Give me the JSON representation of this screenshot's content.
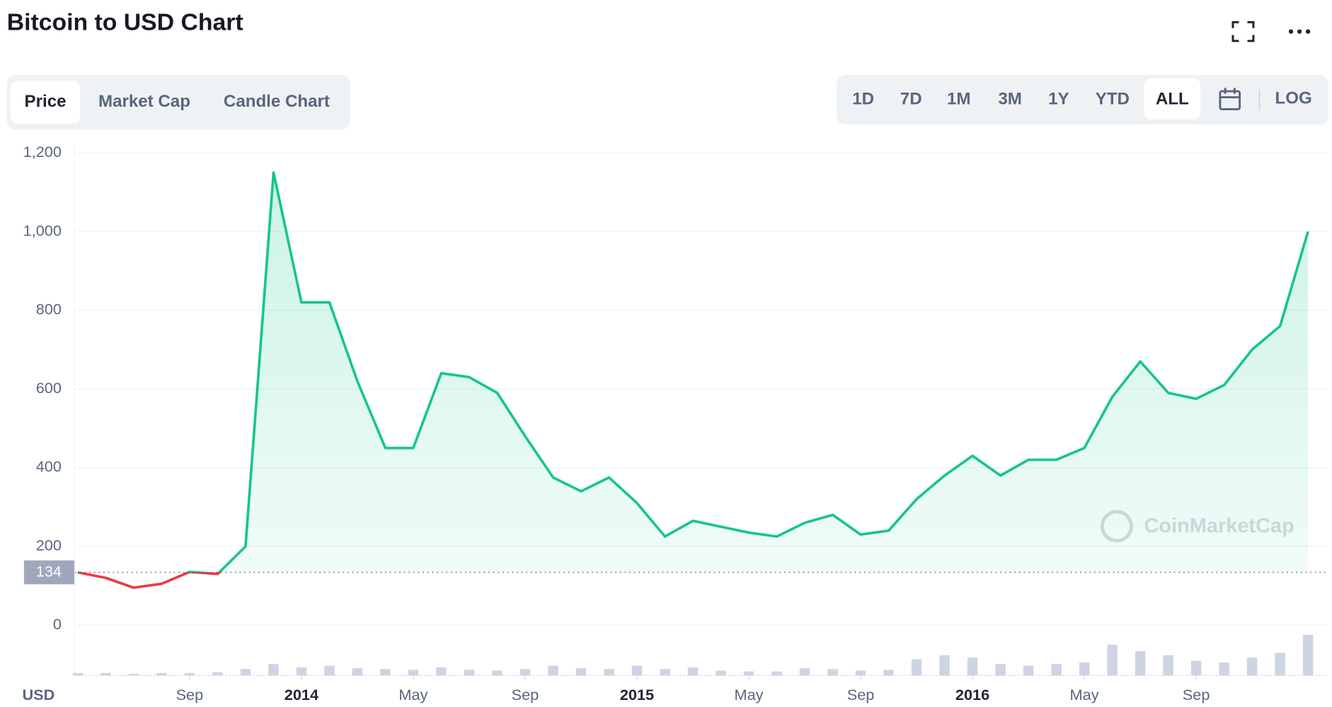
{
  "header": {
    "title": "Bitcoin to USD Chart"
  },
  "tabs": [
    "Price",
    "Market Cap",
    "Candle Chart"
  ],
  "active_tab": 0,
  "ranges": [
    "1D",
    "7D",
    "1M",
    "3M",
    "1Y",
    "YTD",
    "ALL"
  ],
  "active_range": 6,
  "log_button": "LOG",
  "watermark": "CoinMarketCap",
  "chart_data": {
    "type": "line",
    "x": [
      "2013-05",
      "2013-06",
      "2013-07",
      "2013-08",
      "2013-09",
      "2013-10",
      "2013-11",
      "2013-12",
      "2014-01",
      "2014-02",
      "2014-03",
      "2014-04",
      "2014-05",
      "2014-06",
      "2014-07",
      "2014-08",
      "2014-09",
      "2014-10",
      "2014-11",
      "2014-12",
      "2015-01",
      "2015-02",
      "2015-03",
      "2015-04",
      "2015-05",
      "2015-06",
      "2015-07",
      "2015-08",
      "2015-09",
      "2015-10",
      "2015-11",
      "2015-12",
      "2016-01",
      "2016-02",
      "2016-03",
      "2016-04",
      "2016-05",
      "2016-06",
      "2016-07",
      "2016-08",
      "2016-09",
      "2016-10",
      "2016-11",
      "2016-12",
      "2017-01"
    ],
    "values": [
      134,
      120,
      95,
      105,
      135,
      130,
      200,
      1150,
      820,
      820,
      620,
      450,
      450,
      640,
      630,
      590,
      480,
      375,
      340,
      375,
      310,
      225,
      265,
      250,
      235,
      225,
      260,
      280,
      230,
      240,
      320,
      380,
      430,
      380,
      420,
      420,
      450,
      580,
      670,
      590,
      575,
      610,
      700,
      760,
      1000
    ],
    "volume": [
      3,
      3,
      2,
      3,
      3,
      4,
      8,
      14,
      10,
      12,
      9,
      8,
      7,
      10,
      7,
      6,
      8,
      12,
      9,
      8,
      12,
      8,
      10,
      6,
      5,
      5,
      9,
      8,
      6,
      7,
      20,
      25,
      22,
      14,
      12,
      14,
      16,
      38,
      30,
      25,
      18,
      16,
      22,
      28,
      50
    ],
    "volume_ylim": [
      0,
      100
    ],
    "volume_color": "#cfd4e4",
    "reference_value": 134,
    "up_color": "#16c784",
    "down_color": "#ea3943",
    "ylim": [
      -128,
      1220
    ],
    "yticks": [
      0,
      {
        "value": 200,
        "label": "200"
      },
      400,
      600,
      800,
      {
        "value": 1000,
        "label": "1,000"
      },
      {
        "value": 1200,
        "label": "1,200"
      }
    ],
    "xticks": [
      {
        "value": "2013-09",
        "label": "Sep"
      },
      {
        "value": "2014-01",
        "label": "2014"
      },
      {
        "value": "2014-05",
        "label": "May"
      },
      {
        "value": "2014-09",
        "label": "Sep"
      },
      {
        "value": "2015-01",
        "label": "2015"
      },
      {
        "value": "2015-05",
        "label": "May"
      },
      {
        "value": "2015-09",
        "label": "Sep"
      },
      {
        "value": "2016-01",
        "label": "2016"
      },
      {
        "value": "2016-05",
        "label": "May"
      },
      {
        "value": "2016-09",
        "label": "Sep"
      }
    ],
    "ylabel": "USD",
    "grid": true
  }
}
